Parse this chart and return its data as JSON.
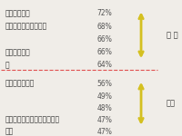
{
  "top_items": [
    {
      "label": "緩和システム",
      "pct": "72%"
    },
    {
      "label": "クルーズコントロール",
      "pct": "68%"
    },
    {
      "label": "",
      "pct": "66%"
    },
    {
      "label": "ディスプレイ",
      "pct": "66%"
    },
    {
      "label": "ム",
      "pct": "64%"
    }
  ],
  "bottom_items": [
    {
      "label": "ワイヤレス充電",
      "pct": "56%"
    },
    {
      "label": "",
      "pct": "49%"
    },
    {
      "label": "",
      "pct": "48%"
    },
    {
      "label": "る車のリモートコントロール",
      "pct": "47%"
    },
    {
      "label": "認識",
      "pct": "47%"
    }
  ],
  "top_label": "ア ク",
  "bottom_label": "車内",
  "bg_color": "#f0ede8",
  "text_color": "#333333",
  "pct_color": "#555555",
  "divider_color": "#e05050",
  "arrow_color": "#d4c020"
}
